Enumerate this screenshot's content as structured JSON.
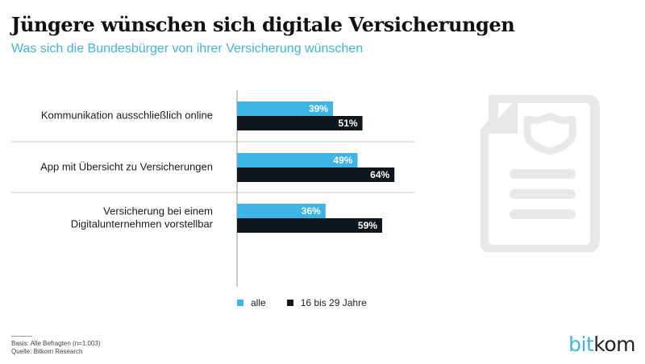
{
  "title": "Jüngere wünschen sich digitale Versicherungen",
  "subtitle": "Was sich die Bundesbürger von ihrer Versicherung wünschen",
  "colors": {
    "alle": "#3cb4e5",
    "jung": "#0f171c",
    "icon": "#e6e9e8",
    "axis": "#999999"
  },
  "chart_data": {
    "type": "bar",
    "orientation": "horizontal",
    "categories": [
      [
        "Kommunikation ausschließlich online"
      ],
      [
        "App mit Übersicht zu Versicherungen"
      ],
      [
        "Versicherung bei einem",
        "Digitalunternehmen vorstellbar"
      ]
    ],
    "series": [
      {
        "name": "alle",
        "values": [
          39,
          49,
          36
        ]
      },
      {
        "name": "16 bis 29 Jahre",
        "values": [
          51,
          64,
          59
        ]
      }
    ],
    "value_suffix": "%",
    "xlim": [
      0,
      100
    ],
    "grid": false,
    "legend_position": "bottom"
  },
  "legend": {
    "alle": "alle",
    "jung": "16 bis 29 Jahre"
  },
  "footnotes": {
    "basis": "Basis: Alle Befragten (n=1.003)",
    "quelle": "Quelle: Bitkom Research"
  },
  "logo": {
    "part1": "bit",
    "part2": "kom"
  },
  "icon_name": "insurance-document-shield-icon"
}
